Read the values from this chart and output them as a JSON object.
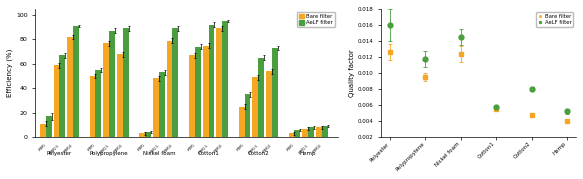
{
  "bar_categories": [
    "Polyester",
    "Polypropylene",
    "Nickel foam",
    "Cotton1",
    "Cotton2",
    "Hemp"
  ],
  "bar_data_bare": {
    "Polyester": [
      11,
      59,
      82
    ],
    "Polypropylene": [
      50,
      77,
      68
    ],
    "Nickel foam": [
      3,
      48,
      79
    ],
    "Cotton1": [
      67,
      75,
      89
    ],
    "Cotton2": [
      25,
      49,
      54
    ],
    "Hemp": [
      3,
      7,
      8
    ]
  },
  "bar_data_aelf": {
    "Polyester": [
      17,
      67,
      91
    ],
    "Polypropylene": [
      55,
      87,
      89
    ],
    "Nickel foam": [
      4,
      53,
      89
    ],
    "Cotton1": [
      74,
      92,
      95
    ],
    "Cotton2": [
      35,
      65,
      73
    ],
    "Hemp": [
      6,
      8,
      9
    ]
  },
  "bar_err_bare": {
    "Polyester": [
      2,
      2,
      2
    ],
    "Polypropylene": [
      2,
      2,
      2
    ],
    "Nickel foam": [
      1,
      2,
      2
    ],
    "Cotton1": [
      2,
      2,
      2
    ],
    "Cotton2": [
      2,
      2,
      2
    ],
    "Hemp": [
      1,
      1,
      1
    ]
  },
  "bar_err_aelf": {
    "Polyester": [
      3,
      2,
      1
    ],
    "Polypropylene": [
      2,
      2,
      2
    ],
    "Nickel foam": [
      1,
      2,
      2
    ],
    "Cotton1": [
      2,
      2,
      1
    ],
    "Cotton2": [
      2,
      2,
      2
    ],
    "Hemp": [
      1,
      1,
      1
    ]
  },
  "scatter_categories": [
    "Polyester",
    "Polypropylene",
    "Nickel foam",
    "Cotton1",
    "Cotton2",
    "Hemp"
  ],
  "scatter_bare": [
    0.0126,
    0.0095,
    0.0124,
    0.0055,
    0.0048,
    0.004
  ],
  "scatter_aelf": [
    0.016,
    0.0118,
    0.0145,
    0.0057,
    0.008,
    0.0052
  ],
  "scatter_err_bare": [
    0.001,
    0.0005,
    0.001,
    0.0002,
    0.0002,
    0.0003
  ],
  "scatter_err_aelf": [
    0.002,
    0.001,
    0.001,
    0.0002,
    0.0003,
    0.0003
  ],
  "color_bare": "#f5a623",
  "color_aelf": "#4a9e3f",
  "ylabel_bar": "Efficiency (%)",
  "ylabel_scatter": "Quality factor",
  "ylim_bar": [
    0,
    105
  ],
  "ylim_scatter": [
    0.002,
    0.018
  ],
  "scatter_yticks": [
    0.002,
    0.004,
    0.006,
    0.008,
    0.01,
    0.012,
    0.014,
    0.016,
    0.018
  ]
}
